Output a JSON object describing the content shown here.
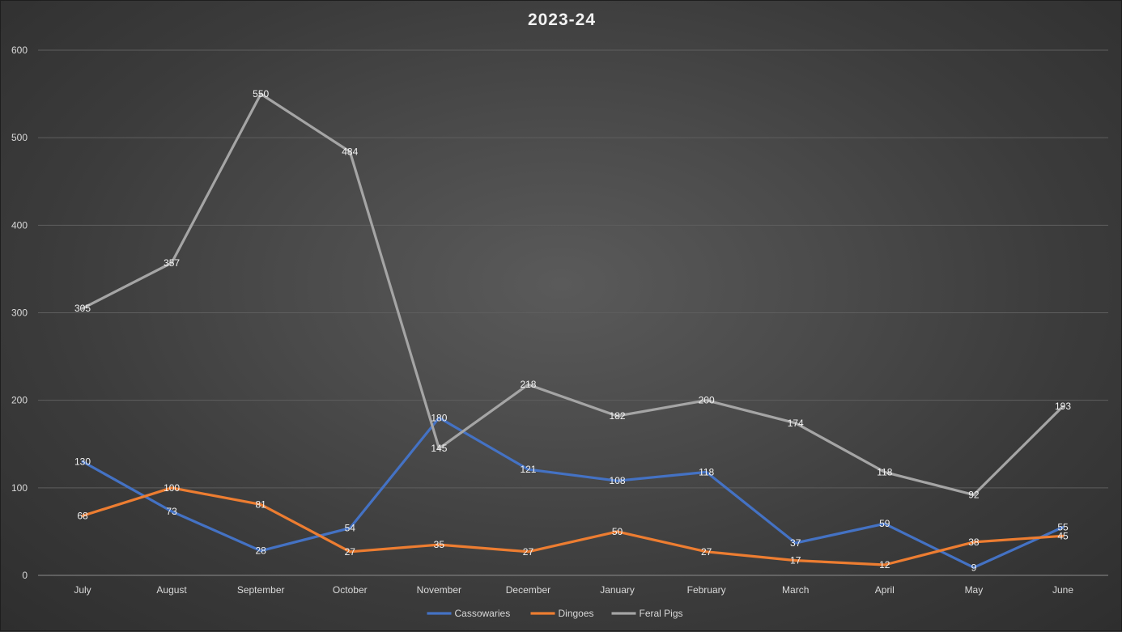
{
  "chart_data": {
    "type": "line",
    "title": "2023-24",
    "xlabel": "",
    "ylabel": "",
    "ylim": [
      0,
      600
    ],
    "yticks": [
      0,
      100,
      200,
      300,
      400,
      500,
      600
    ],
    "categories": [
      "July",
      "August",
      "September",
      "October",
      "November",
      "December",
      "January",
      "February",
      "March",
      "April",
      "May",
      "June"
    ],
    "grid": true,
    "legend_position": "bottom",
    "series": [
      {
        "name": "Cassowaries",
        "color": "#4472c4",
        "values": [
          130,
          73,
          28,
          54,
          180,
          121,
          108,
          118,
          37,
          59,
          9,
          55
        ]
      },
      {
        "name": "Dingoes",
        "color": "#ed7d31",
        "values": [
          68,
          100,
          81,
          27,
          35,
          27,
          50,
          27,
          17,
          12,
          38,
          45
        ]
      },
      {
        "name": "Feral Pigs",
        "color": "#a5a5a5",
        "values": [
          305,
          357,
          550,
          484,
          145,
          218,
          182,
          200,
          174,
          118,
          92,
          193
        ]
      }
    ]
  }
}
